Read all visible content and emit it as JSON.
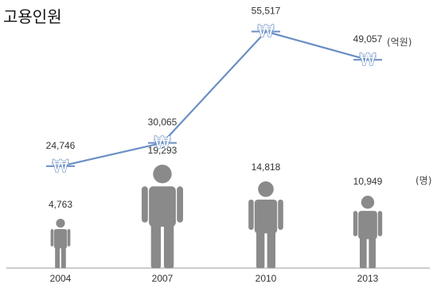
{
  "chart_data": {
    "type": "line",
    "title": "고용인원",
    "categories": [
      "2004",
      "2007",
      "2010",
      "2013"
    ],
    "series": [
      {
        "unit": "(억원)",
        "values": [
          24746,
          30065,
          55517,
          49057
        ],
        "value_labels": [
          "24,746",
          "30,065",
          "55,517",
          "49,057"
        ],
        "marker": "₩",
        "color": "#6b8fc4"
      },
      {
        "unit": "(명)",
        "values": [
          4763,
          19293,
          14818,
          10949
        ],
        "value_labels": [
          "4,763",
          "19,293",
          "14,818",
          "10,949"
        ],
        "marker": "person-icon",
        "color": "#8a8a8a"
      }
    ]
  }
}
